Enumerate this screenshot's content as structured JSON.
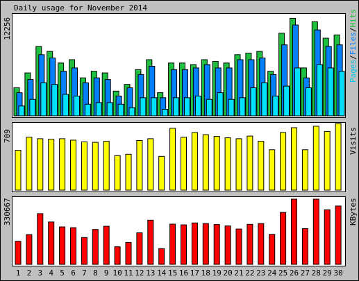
{
  "title": "Daily usage for November 2014",
  "colors": {
    "hits": "#20c040",
    "files": "#0080ff",
    "pages": "#00e0ff",
    "visits": "#ffff00",
    "kbytes": "#ff0000",
    "weekend_label": "#00a000",
    "weekday_label": "#000000",
    "frame": "#c0c0c0"
  },
  "panels": {
    "hits": {
      "max_label": "12256",
      "legend": [
        "Pages",
        "Files",
        "Hits"
      ]
    },
    "visits": {
      "max_label": "709",
      "legend": [
        "Visits"
      ]
    },
    "kbytes": {
      "max_label": "330667",
      "legend": [
        "KBytes"
      ]
    }
  },
  "chart_data": [
    {
      "type": "bar",
      "title": "Daily usage for November 2014",
      "categories": [
        "1",
        "2",
        "3",
        "4",
        "5",
        "6",
        "7",
        "8",
        "9",
        "10",
        "11",
        "12",
        "13",
        "14",
        "15",
        "16",
        "17",
        "18",
        "19",
        "20",
        "21",
        "22",
        "23",
        "24",
        "25",
        "26",
        "27",
        "28",
        "29",
        "30"
      ],
      "weekend_days": [
        "1",
        "2",
        "8",
        "9",
        "15",
        "16",
        "22",
        "23",
        "29",
        "30"
      ],
      "ylim": [
        0,
        12256
      ],
      "series": [
        {
          "name": "Hits",
          "values": [
            3400,
            5200,
            8400,
            7800,
            6400,
            6800,
            4600,
            5400,
            5200,
            3000,
            3800,
            5600,
            6800,
            2800,
            6400,
            6400,
            6200,
            6800,
            6600,
            6400,
            7400,
            7600,
            7800,
            5400,
            10000,
            11800,
            5800,
            11400,
            9400,
            9800
          ]
        },
        {
          "name": "Files",
          "values": [
            2800,
            4400,
            7400,
            7000,
            5400,
            5800,
            4000,
            4600,
            4400,
            2400,
            3400,
            5000,
            6000,
            2200,
            5600,
            5600,
            5800,
            6200,
            5800,
            5800,
            6800,
            6800,
            7000,
            5000,
            8600,
            11000,
            4600,
            10400,
            8400,
            8600
          ]
        },
        {
          "name": "Pages",
          "values": [
            1200,
            2000,
            4000,
            3800,
            2600,
            2400,
            1400,
            1600,
            1600,
            1400,
            1000,
            2200,
            2200,
            800,
            2200,
            2200,
            2400,
            2000,
            2800,
            2000,
            2200,
            3400,
            4000,
            2400,
            3600,
            5800,
            3400,
            6200,
            5800,
            5400
          ]
        }
      ]
    },
    {
      "type": "bar",
      "categories": [
        "1",
        "2",
        "3",
        "4",
        "5",
        "6",
        "7",
        "8",
        "9",
        "10",
        "11",
        "12",
        "13",
        "14",
        "15",
        "16",
        "17",
        "18",
        "19",
        "20",
        "21",
        "22",
        "23",
        "24",
        "25",
        "26",
        "27",
        "28",
        "29",
        "30"
      ],
      "ylim": [
        0,
        709
      ],
      "series": [
        {
          "name": "Visits",
          "values": [
            425,
            563,
            547,
            543,
            547,
            532,
            513,
            509,
            520,
            367,
            382,
            528,
            547,
            360,
            658,
            563,
            613,
            590,
            572,
            557,
            547,
            575,
            520,
            430,
            613,
            665,
            430,
            680,
            625,
            709
          ]
        }
      ]
    },
    {
      "type": "bar",
      "categories": [
        "1",
        "2",
        "3",
        "4",
        "5",
        "6",
        "7",
        "8",
        "9",
        "10",
        "11",
        "12",
        "13",
        "14",
        "15",
        "16",
        "17",
        "18",
        "19",
        "20",
        "21",
        "22",
        "23",
        "24",
        "25",
        "26",
        "27",
        "28",
        "29",
        "30"
      ],
      "ylim": [
        0,
        330667
      ],
      "series": [
        {
          "name": "KBytes",
          "values": [
            117000,
            151000,
            257000,
            215000,
            190000,
            186000,
            136000,
            177000,
            193000,
            89000,
            111000,
            160000,
            224000,
            80000,
            204000,
            200000,
            210000,
            207000,
            202000,
            195000,
            179000,
            203000,
            207000,
            152000,
            263000,
            330667,
            181000,
            330667,
            277000,
            296000
          ]
        }
      ]
    }
  ]
}
